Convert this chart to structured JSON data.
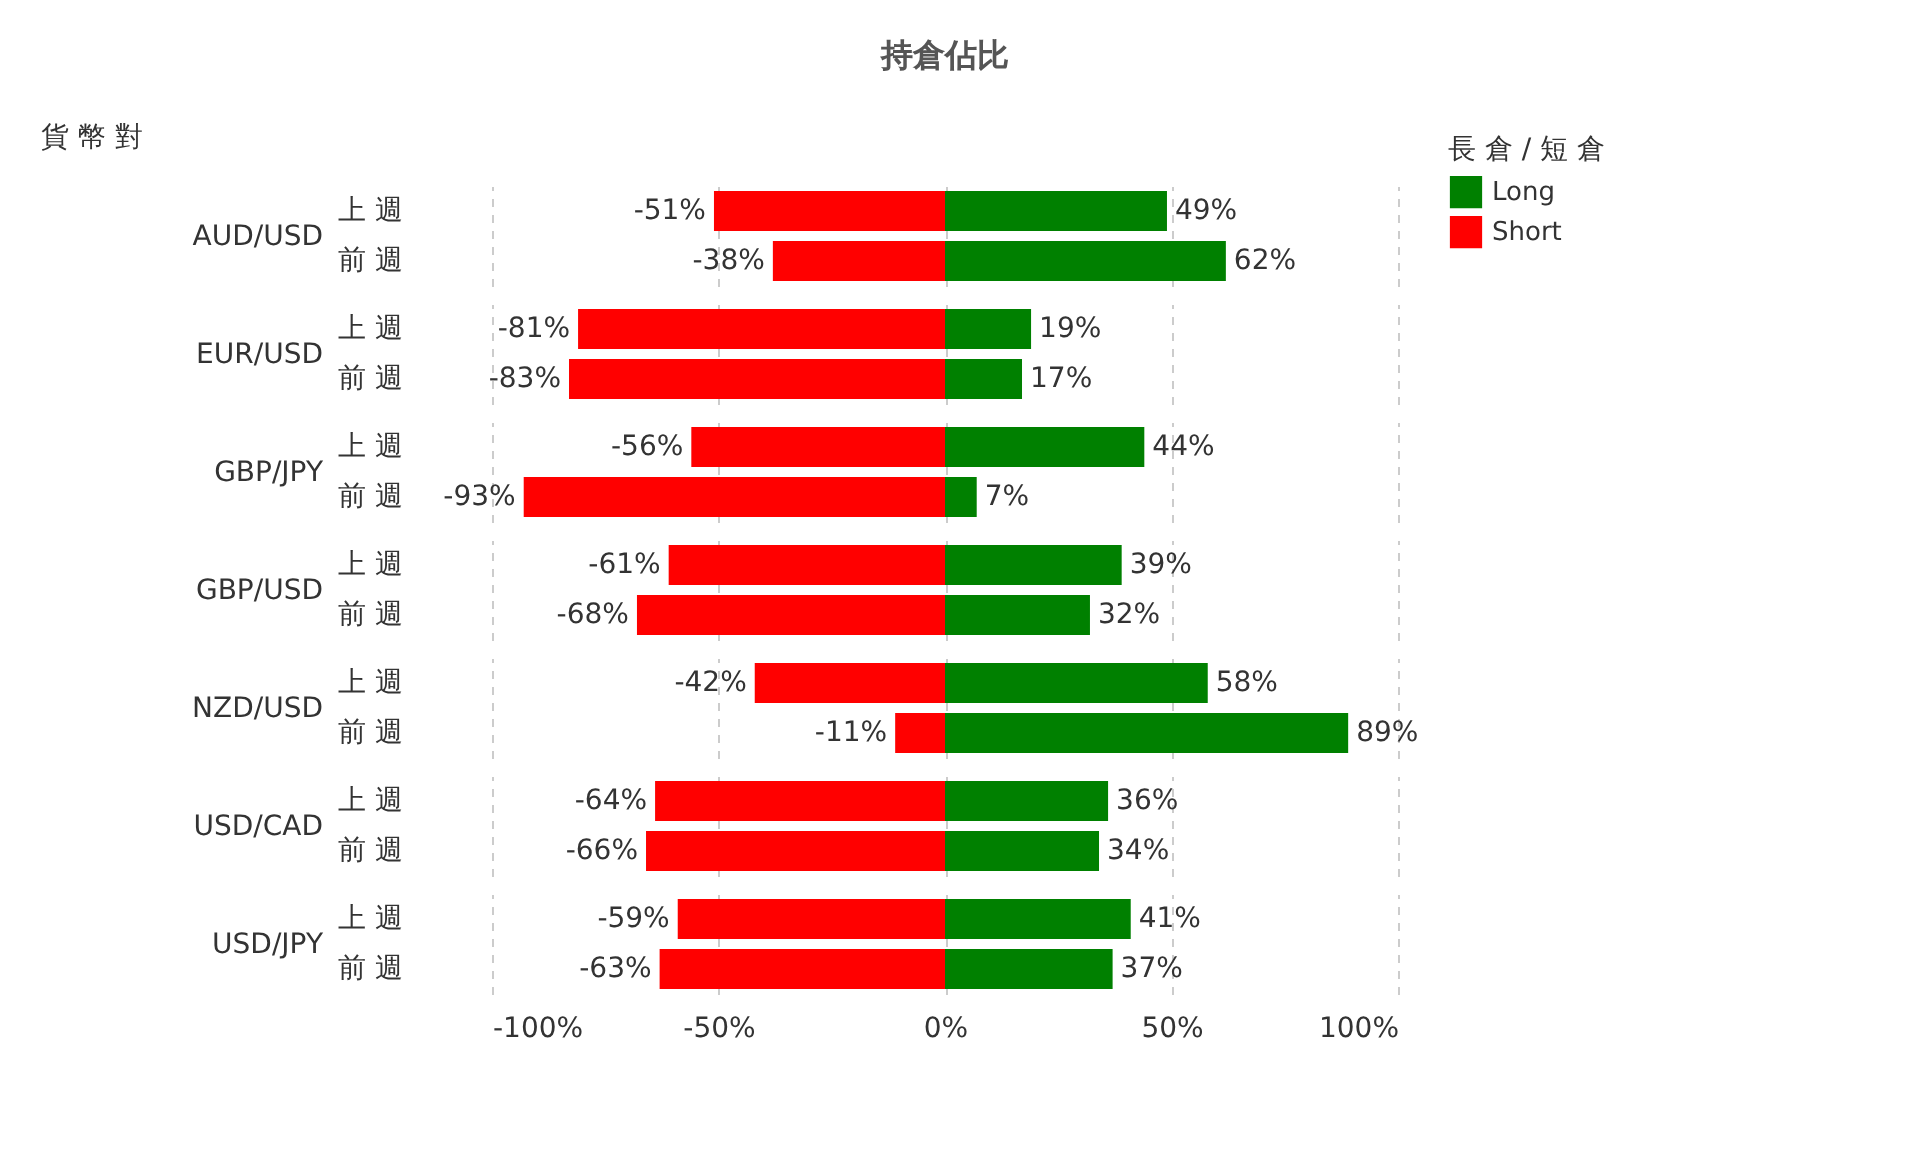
{
  "chart_data": [
    {
      "type": "bar",
      "orientation": "horizontal",
      "stacked": true,
      "title": "持倉佔比",
      "ylabel": "AUD/USD",
      "annotations": [
        "貨 幣 對"
      ],
      "legend_title": "長 倉 / 短 倉",
      "legend": "top right",
      "grid": "x",
      "tick_labels": "y",
      "categories": [
        "上 週",
        "前 週"
      ],
      "xlim": [
        -100,
        100
      ],
      "xticks": [
        {
          "value": -100,
          "label": null
        },
        {
          "value": -50,
          "label": null
        },
        {
          "value": 0,
          "label": null
        },
        {
          "value": 50,
          "label": null
        },
        {
          "value": 100,
          "label": null
        }
      ],
      "series": [
        {
          "name": "Long",
          "color": "#008000",
          "values": [
            49,
            62
          ],
          "value_labels": [
            "49%",
            "62%"
          ]
        },
        {
          "name": "Short",
          "color": "#ff0000",
          "values": [
            -51,
            -38
          ],
          "value_labels": [
            "-51%",
            "-38%"
          ]
        }
      ]
    },
    {
      "type": "bar",
      "orientation": "horizontal",
      "stacked": true,
      "ylabel": "EUR/USD",
      "grid": "x",
      "tick_labels": "y",
      "categories": [
        "上 週",
        "前 週"
      ],
      "xlim": [
        -100,
        100
      ],
      "xticks": [
        {
          "value": -100,
          "label": null
        },
        {
          "value": -50,
          "label": null
        },
        {
          "value": 0,
          "label": null
        },
        {
          "value": 50,
          "label": null
        },
        {
          "value": 100,
          "label": null
        }
      ],
      "series": [
        {
          "color": "#008000",
          "values": [
            19,
            17
          ],
          "value_labels": [
            "19%",
            "17%"
          ]
        },
        {
          "color": "#ff0000",
          "values": [
            -81,
            -83
          ],
          "value_labels": [
            "-81%",
            "-83%"
          ]
        }
      ]
    },
    {
      "type": "bar",
      "orientation": "horizontal",
      "stacked": true,
      "ylabel": "GBP/JPY",
      "grid": "x",
      "tick_labels": "y",
      "categories": [
        "上 週",
        "前 週"
      ],
      "xlim": [
        -100,
        100
      ],
      "xticks": [
        {
          "value": -100,
          "label": null
        },
        {
          "value": -50,
          "label": null
        },
        {
          "value": 0,
          "label": null
        },
        {
          "value": 50,
          "label": null
        },
        {
          "value": 100,
          "label": null
        }
      ],
      "series": [
        {
          "color": "#008000",
          "values": [
            44,
            7
          ],
          "value_labels": [
            "44%",
            "7%"
          ]
        },
        {
          "color": "#ff0000",
          "values": [
            -56,
            -93
          ],
          "value_labels": [
            "-56%",
            "-93%"
          ]
        }
      ]
    },
    {
      "type": "bar",
      "orientation": "horizontal",
      "stacked": true,
      "ylabel": "GBP/USD",
      "grid": "x",
      "tick_labels": "y",
      "categories": [
        "上 週",
        "前 週"
      ],
      "xlim": [
        -100,
        100
      ],
      "xticks": [
        {
          "value": -100,
          "label": null
        },
        {
          "value": -50,
          "label": null
        },
        {
          "value": 0,
          "label": null
        },
        {
          "value": 50,
          "label": null
        },
        {
          "value": 100,
          "label": null
        }
      ],
      "series": [
        {
          "color": "#008000",
          "values": [
            39,
            32
          ],
          "value_labels": [
            "39%",
            "32%"
          ]
        },
        {
          "color": "#ff0000",
          "values": [
            -61,
            -68
          ],
          "value_labels": [
            "-61%",
            "-68%"
          ]
        }
      ]
    },
    {
      "type": "bar",
      "orientation": "horizontal",
      "stacked": true,
      "ylabel": "NZD/USD",
      "grid": "x",
      "tick_labels": "y",
      "categories": [
        "上 週",
        "前 週"
      ],
      "xlim": [
        -100,
        100
      ],
      "xticks": [
        {
          "value": -100,
          "label": null
        },
        {
          "value": -50,
          "label": null
        },
        {
          "value": 0,
          "label": null
        },
        {
          "value": 50,
          "label": null
        },
        {
          "value": 100,
          "label": null
        }
      ],
      "series": [
        {
          "color": "#008000",
          "values": [
            58,
            89
          ],
          "value_labels": [
            "58%",
            "89%"
          ]
        },
        {
          "color": "#ff0000",
          "values": [
            -42,
            -11
          ],
          "value_labels": [
            "-42%",
            "-11%"
          ]
        }
      ]
    },
    {
      "type": "bar",
      "orientation": "horizontal",
      "stacked": true,
      "ylabel": "USD/CAD",
      "grid": "x",
      "tick_labels": "y",
      "categories": [
        "上 週",
        "前 週"
      ],
      "xlim": [
        -100,
        100
      ],
      "xticks": [
        {
          "value": -100,
          "label": null
        },
        {
          "value": -50,
          "label": null
        },
        {
          "value": 0,
          "label": null
        },
        {
          "value": 50,
          "label": null
        },
        {
          "value": 100,
          "label": null
        }
      ],
      "series": [
        {
          "color": "#008000",
          "values": [
            36,
            34
          ],
          "value_labels": [
            "36%",
            "34%"
          ]
        },
        {
          "color": "#ff0000",
          "values": [
            -64,
            -66
          ],
          "value_labels": [
            "-64%",
            "-66%"
          ]
        }
      ]
    },
    {
      "type": "bar",
      "orientation": "horizontal",
      "stacked": true,
      "ylabel": "USD/JPY",
      "grid": "x",
      "categories": [
        "上 週",
        "前 週"
      ],
      "xlim": [
        -100,
        100
      ],
      "xticks": [
        {
          "value": -100,
          "label": "-100%"
        },
        {
          "value": -50,
          "label": "-50%"
        },
        {
          "value": 0,
          "label": "0%"
        },
        {
          "value": 50,
          "label": "50%"
        },
        {
          "value": 100,
          "label": "100%"
        }
      ],
      "series": [
        {
          "color": "#008000",
          "values": [
            41,
            37
          ],
          "value_labels": [
            "41%",
            "37%"
          ]
        },
        {
          "color": "#ff0000",
          "values": [
            -59,
            -63
          ],
          "value_labels": [
            "-59%",
            "-63%"
          ]
        }
      ]
    }
  ]
}
